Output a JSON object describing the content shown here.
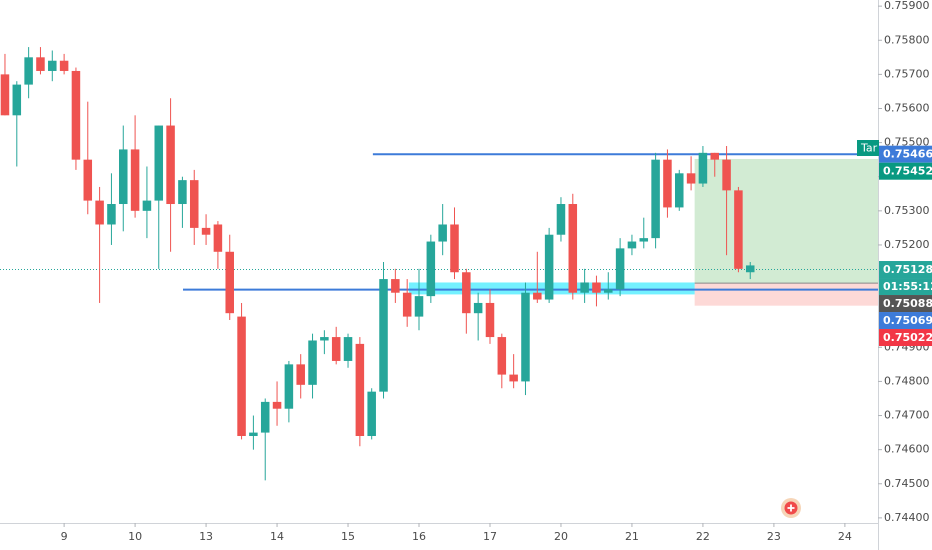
{
  "chart_data": {
    "type": "candlestick",
    "up_color": "#26a69a",
    "down_color": "#ef5350",
    "open": [
      0.757,
      0.7558,
      0.7567,
      0.7575,
      0.7571,
      0.7574,
      0.7571,
      0.7545,
      0.7533,
      0.7526,
      0.7532,
      0.7548,
      0.753,
      0.7533,
      0.7555,
      0.7532,
      0.7539,
      0.7525,
      0.7526,
      0.7518,
      0.7499,
      0.7464,
      0.7465,
      0.7474,
      0.7472,
      0.7485,
      0.7479,
      0.7492,
      0.7493,
      0.7486,
      0.7491,
      0.7464,
      0.7477,
      0.751,
      0.7506,
      0.7499,
      0.7505,
      0.7521,
      0.7526,
      0.7512,
      0.75,
      0.7503,
      0.7493,
      0.7482,
      0.748,
      0.7506,
      0.7504,
      0.7523,
      0.7532,
      0.7506,
      0.7509,
      0.7506,
      0.7507,
      0.7519,
      0.7521,
      0.7522,
      0.7545,
      0.7531,
      0.7541,
      0.7538,
      0.7547,
      0.7545,
      0.7536,
      0.7512
    ],
    "high": [
      0.7576,
      0.7568,
      0.7578,
      0.7578,
      0.7577,
      0.7576,
      0.7572,
      0.7562,
      0.7537,
      0.7541,
      0.7555,
      0.7558,
      0.7543,
      0.7555,
      0.7563,
      0.754,
      0.7542,
      0.7529,
      0.7527,
      0.7523,
      0.7503,
      0.747,
      0.7475,
      0.748,
      0.7486,
      0.7488,
      0.7494,
      0.7495,
      0.7496,
      0.7494,
      0.7493,
      0.7478,
      0.7515,
      0.7513,
      0.751,
      0.7513,
      0.7523,
      0.7532,
      0.7531,
      0.7513,
      0.7506,
      0.7507,
      0.7494,
      0.7488,
      0.7509,
      0.7518,
      0.7525,
      0.7534,
      0.7535,
      0.7513,
      0.7511,
      0.7512,
      0.7522,
      0.7523,
      0.7528,
      0.7547,
      0.7548,
      0.7542,
      0.7546,
      0.7549,
      0.7547,
      0.7549,
      0.7537,
      0.7515
    ],
    "low": [
      0.7558,
      0.7543,
      0.7563,
      0.757,
      0.7568,
      0.757,
      0.7542,
      0.7529,
      0.7503,
      0.752,
      0.7524,
      0.7528,
      0.7522,
      0.7513,
      0.7518,
      0.7525,
      0.752,
      0.752,
      0.7513,
      0.7498,
      0.7463,
      0.746,
      0.7451,
      0.7467,
      0.7468,
      0.7475,
      0.7475,
      0.7488,
      0.7485,
      0.7484,
      0.7461,
      0.7463,
      0.7475,
      0.7503,
      0.7496,
      0.7495,
      0.7503,
      0.7517,
      0.751,
      0.7494,
      0.7492,
      0.7491,
      0.7478,
      0.7478,
      0.7476,
      0.7503,
      0.7503,
      0.7521,
      0.7504,
      0.7503,
      0.7502,
      0.7504,
      0.7505,
      0.7517,
      0.7519,
      0.7519,
      0.7528,
      0.753,
      0.7536,
      0.7537,
      0.754,
      0.7517,
      0.7512,
      0.751
    ],
    "close": [
      0.7558,
      0.7567,
      0.7575,
      0.7571,
      0.7574,
      0.7571,
      0.7545,
      0.7533,
      0.7526,
      0.7532,
      0.7548,
      0.753,
      0.7533,
      0.7555,
      0.7532,
      0.7539,
      0.7525,
      0.7523,
      0.7518,
      0.75,
      0.7464,
      0.7465,
      0.7474,
      0.7472,
      0.7485,
      0.7479,
      0.7492,
      0.7493,
      0.7486,
      0.7493,
      0.7464,
      0.7477,
      0.751,
      0.7506,
      0.7499,
      0.7505,
      0.7521,
      0.7526,
      0.7512,
      0.75,
      0.7503,
      0.7493,
      0.7482,
      0.748,
      0.7506,
      0.7504,
      0.7523,
      0.7532,
      0.7506,
      0.7509,
      0.7506,
      0.7507,
      0.7519,
      0.7521,
      0.7522,
      0.7545,
      0.7531,
      0.7541,
      0.7538,
      0.7547,
      0.7545,
      0.7536,
      0.7513,
      0.7514
    ],
    "xlim": [
      -0.42,
      73.8
    ],
    "xticks": [
      {
        "value": 5,
        "label": "9"
      },
      {
        "value": 11,
        "label": "10"
      },
      {
        "value": 17,
        "label": "13"
      },
      {
        "value": 23,
        "label": "14"
      },
      {
        "value": 29,
        "label": "15"
      },
      {
        "value": 35,
        "label": "16"
      },
      {
        "value": 41,
        "label": "17"
      },
      {
        "value": 47,
        "label": "20"
      },
      {
        "value": 53,
        "label": "21"
      },
      {
        "value": 59,
        "label": "22"
      },
      {
        "value": 65,
        "label": "23"
      },
      {
        "value": 71,
        "label": "24"
      }
    ],
    "ylim": [
      0.74385,
      0.75918
    ],
    "yticks": [
      {
        "value": 0.759,
        "label": "0.75900"
      },
      {
        "value": 0.758,
        "label": "0.75800"
      },
      {
        "value": 0.757,
        "label": "0.75700"
      },
      {
        "value": 0.756,
        "label": "0.75600"
      },
      {
        "value": 0.755,
        "label": "0.75500"
      },
      {
        "value": 0.754,
        "label": "0.75400"
      },
      {
        "value": 0.753,
        "label": "0.75300"
      },
      {
        "value": 0.752,
        "label": "0.75200"
      },
      {
        "value": 0.749,
        "label": "0.74900"
      },
      {
        "value": 0.748,
        "label": "0.74800"
      },
      {
        "value": 0.747,
        "label": "0.74700"
      },
      {
        "value": 0.746,
        "label": "0.74600"
      },
      {
        "value": 0.745,
        "label": "0.74500"
      },
      {
        "value": 0.744,
        "label": "0.74400"
      }
    ],
    "lines": [
      {
        "value": 0.75466,
        "start": 31.1,
        "color": "#3d7bd9"
      },
      {
        "value": 0.75069,
        "start": 15.05,
        "color": "#3d7bd9"
      }
    ],
    "zone": {
      "low": 0.75055,
      "high": 0.7509,
      "start": 34.15,
      "end": 58.3,
      "color": "#00e5ff"
    },
    "position": {
      "target": 0.75452,
      "entry": 0.75088,
      "stop": 0.75022,
      "start": 58.3,
      "end": 73.8
    },
    "price_labels": [
      {
        "value": 0.75466,
        "color": "#3d7bd9"
      },
      {
        "value": 0.75452,
        "color": "#089981"
      },
      {
        "value": 0.75128,
        "color": "#26a69a",
        "line": "dotted"
      },
      {
        "text": "01:55:12",
        "color": "#26a69a"
      },
      {
        "value": 0.75088,
        "color": "#555555"
      },
      {
        "value": 0.75069,
        "color": "#3d7bd9"
      },
      {
        "value": 0.75022,
        "color": "#f23645"
      }
    ],
    "tag": "Tar"
  }
}
